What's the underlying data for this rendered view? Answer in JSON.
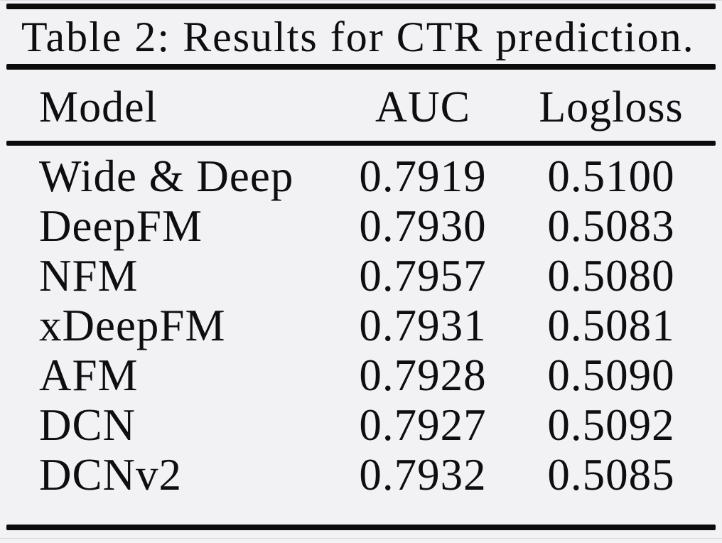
{
  "table": {
    "caption": "Table 2: Results for CTR prediction.",
    "columns": [
      "Model",
      "AUC",
      "Logloss"
    ],
    "rows": [
      {
        "model": "Wide & Deep",
        "auc": "0.7919",
        "logloss": "0.5100"
      },
      {
        "model": "DeepFM",
        "auc": "0.7930",
        "logloss": "0.5083"
      },
      {
        "model": "NFM",
        "auc": "0.7957",
        "logloss": "0.5080"
      },
      {
        "model": "xDeepFM",
        "auc": "0.7931",
        "logloss": "0.5081"
      },
      {
        "model": "AFM",
        "auc": "0.7928",
        "logloss": "0.5090"
      },
      {
        "model": "DCN",
        "auc": "0.7927",
        "logloss": "0.5092"
      },
      {
        "model": "DCNv2",
        "auc": "0.7932",
        "logloss": "0.5085"
      }
    ]
  },
  "colors": {
    "background": "#f2f2f5",
    "text": "#0e0e10",
    "rule": "#0b0b0c"
  },
  "chart_data": {
    "type": "table",
    "title": "Table 2: Results for CTR prediction.",
    "columns": [
      "Model",
      "AUC",
      "Logloss"
    ],
    "rows": [
      [
        "Wide & Deep",
        0.7919,
        0.51
      ],
      [
        "DeepFM",
        0.793,
        0.5083
      ],
      [
        "NFM",
        0.7957,
        0.508
      ],
      [
        "xDeepFM",
        0.7931,
        0.5081
      ],
      [
        "AFM",
        0.7928,
        0.509
      ],
      [
        "DCN",
        0.7927,
        0.5092
      ],
      [
        "DCNv2",
        0.7932,
        0.5085
      ]
    ]
  }
}
